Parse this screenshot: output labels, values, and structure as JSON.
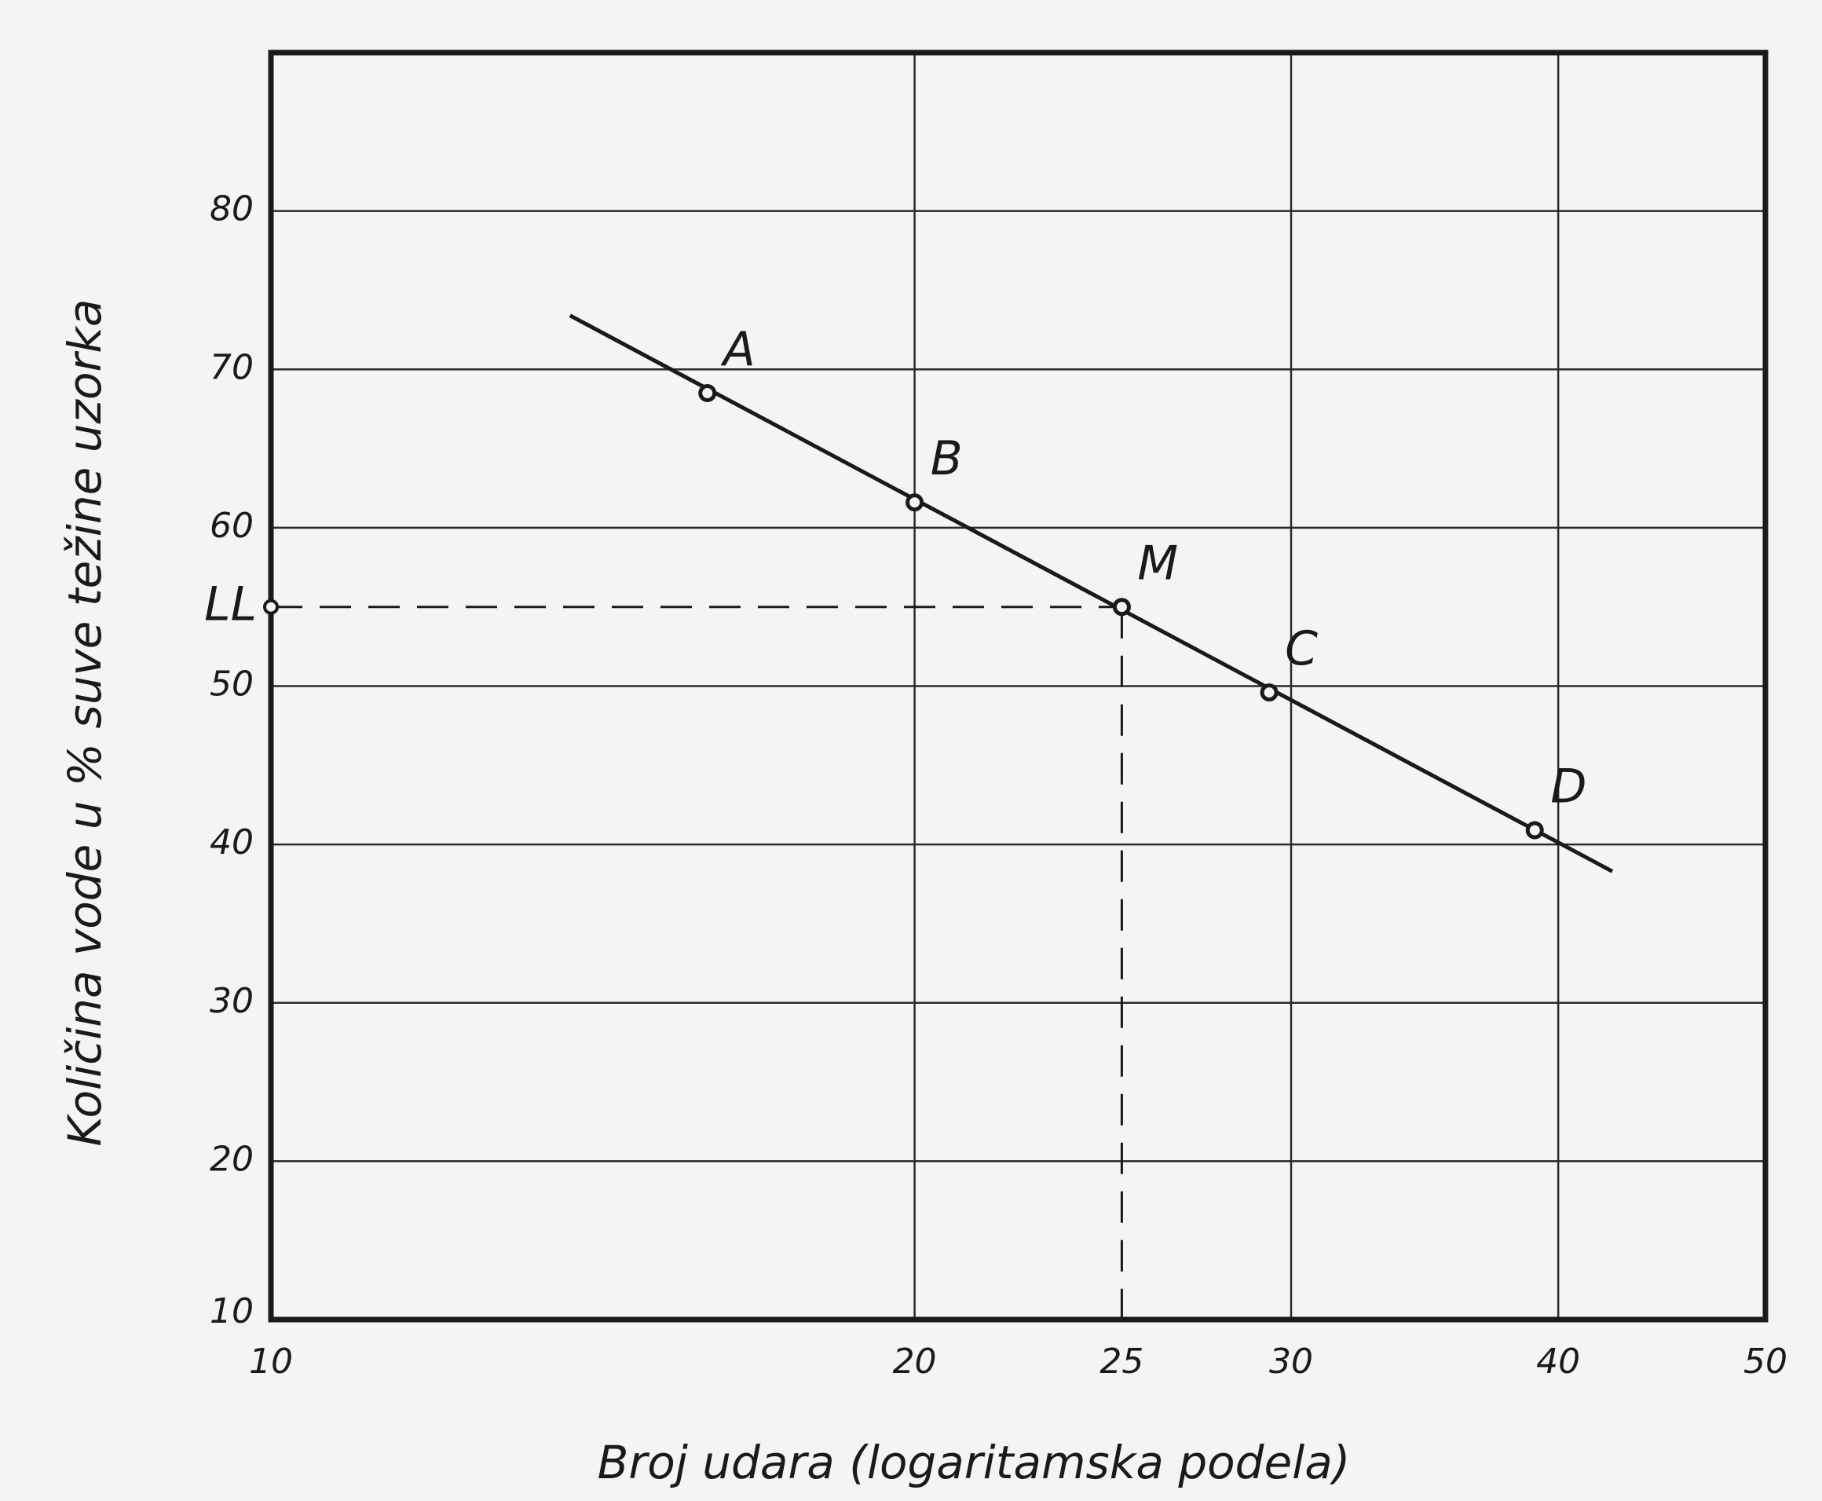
{
  "chart_data": {
    "type": "scatter",
    "x_label": "Broj udara (logaritamska podela)",
    "y_label": "Količina vode u % suve težine uzorka",
    "x_scale": "log",
    "xlim": [
      10,
      50
    ],
    "xticks": [
      10,
      20,
      25,
      30,
      40,
      50
    ],
    "ylim": [
      10,
      90
    ],
    "yticks": [
      10,
      20,
      30,
      40,
      50,
      60,
      70,
      80
    ],
    "grid": true,
    "color": "#1a1a1a",
    "point_labels": [
      "A",
      "B",
      "M",
      "C",
      "D"
    ],
    "x": [
      16,
      20,
      25,
      29.3,
      39
    ],
    "values": [
      68.5,
      61.6,
      55,
      49.6,
      40.9
    ],
    "fit_line": {
      "x": [
        13.8,
        42.4
      ],
      "values": [
        73.4,
        38.3
      ]
    },
    "liquid_limit": {
      "label": "LL"
    }
  }
}
